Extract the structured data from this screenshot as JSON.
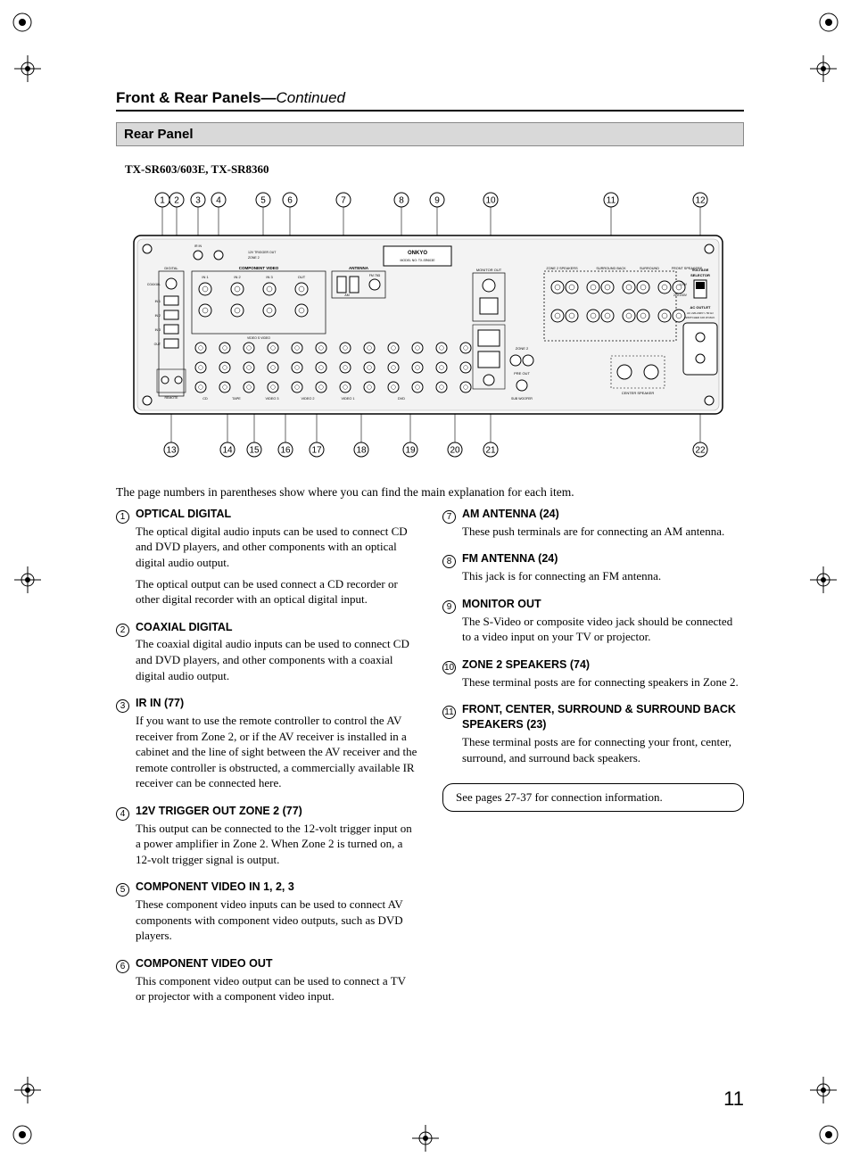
{
  "page": {
    "title_main": "Front & Rear Panels",
    "title_sep": "—",
    "title_cont": "Continued",
    "subheader": "Rear Panel",
    "model": "TX-SR603/603E, TX-SR8360",
    "intro": "The page numbers in parentheses show where you can find the main explanation for each item.",
    "note": "See pages 27-37 for connection information.",
    "page_number": "11"
  },
  "callouts_top": [
    "1",
    "2",
    "3",
    "4",
    "5",
    "6",
    "7",
    "8",
    "9",
    "10",
    "11",
    "12"
  ],
  "callouts_bottom": [
    "13",
    "14",
    "15",
    "16",
    "17",
    "18",
    "19",
    "20",
    "21",
    "22"
  ],
  "diagram_labels": {
    "brand": "ONKYO",
    "model_no": "MODEL NO: TX-SR603E",
    "trigger": "12V TRIGGER OUT ZONE 2",
    "ir_in": "IR IN",
    "digital": "DIGITAL",
    "coaxial": "COAXIAL",
    "optical": "OPTICAL",
    "component_video": "COMPONENT VIDEO",
    "antenna": "ANTENNA",
    "am": "AM",
    "fm": "FM 75Ω",
    "monitor_out": "MONITOR OUT",
    "video": "VIDEO",
    "s_video": "S VIDEO",
    "zone2_speakers": "ZONE 2 SPEAKERS",
    "surround_back": "SURROUND BACK SPEAKERS",
    "surround": "SURROUND SPEAKERS",
    "front_speakers": "FRONT SPEAKERS",
    "center_speaker": "CENTER SPEAKER",
    "pre_out": "PRE OUT",
    "sub_woofer": "SUB WOOFER",
    "zone2": "ZONE 2",
    "voltage_selector": "VOLTAGE SELECTOR",
    "v120": "120V",
    "v220": "220-230V",
    "ac_outlet": "AC OUTLET",
    "ac_spec": "AC 220-240V～ 50 Hz SWITCHED 100 W MAX.",
    "cd": "CD",
    "tape": "TAPE",
    "video1": "VIDEO 1",
    "video2": "VIDEO 2",
    "video3": "VIDEO 3",
    "dvd": "DVD",
    "in1": "IN 1",
    "in2": "IN 2",
    "in3": "IN 3",
    "out": "OUT",
    "in": "IN",
    "front": "FRONT",
    "surr": "SURROUND",
    "center": "CENTER",
    "ri": "REMOTE CONTROL"
  },
  "items_left": [
    {
      "n": "1",
      "head": "OPTICAL DIGITAL",
      "paras": [
        "The optical digital audio inputs can be used to connect CD and DVD players, and other components with an optical digital audio output.",
        "The optical output can be used connect a CD recorder or other digital recorder with an optical digital input."
      ]
    },
    {
      "n": "2",
      "head": "COAXIAL DIGITAL",
      "paras": [
        "The coaxial digital audio inputs can be used to connect CD and DVD players, and other components with a coaxial digital audio output."
      ]
    },
    {
      "n": "3",
      "head": "IR IN (77)",
      "paras": [
        "If you want to use the remote controller to control the AV receiver from Zone 2, or if the AV receiver is installed in a cabinet and the line of sight between the AV receiver and the remote controller is obstructed, a commercially available IR receiver can be connected here."
      ]
    },
    {
      "n": "4",
      "head": "12V TRIGGER OUT ZONE 2 (77)",
      "paras": [
        "This output can be connected to the 12-volt trigger input on a power amplifier in Zone 2. When Zone 2 is turned on, a 12-volt trigger signal is output."
      ]
    },
    {
      "n": "5",
      "head": "COMPONENT VIDEO IN 1, 2, 3",
      "paras": [
        "These component video inputs can be used to connect AV components with component video outputs, such as DVD players."
      ]
    },
    {
      "n": "6",
      "head": "COMPONENT VIDEO OUT",
      "paras": [
        "This component video output can be used to connect a TV or projector with a component video input."
      ]
    }
  ],
  "items_right": [
    {
      "n": "7",
      "head": "AM ANTENNA (24)",
      "paras": [
        "These push terminals are for connecting an AM antenna."
      ]
    },
    {
      "n": "8",
      "head": "FM ANTENNA (24)",
      "paras": [
        "This jack is for connecting an FM antenna."
      ]
    },
    {
      "n": "9",
      "head": "MONITOR OUT",
      "paras": [
        "The S-Video or composite video jack should be connected to a video input on your TV or projector."
      ]
    },
    {
      "n": "10",
      "head": "ZONE 2 SPEAKERS (74)",
      "paras": [
        "These terminal posts are for connecting speakers in Zone 2."
      ]
    },
    {
      "n": "11",
      "head": "FRONT, CENTER, SURROUND & SURROUND BACK SPEAKERS (23)",
      "paras": [
        "These terminal posts are for connecting your front, center, surround, and surround back speakers."
      ]
    }
  ],
  "colors": {
    "rule": "#000000",
    "grey_fill": "#d9d9d9",
    "light_border": "#888888",
    "panel_light": "#f3f3f3"
  },
  "typography": {
    "body_family": "Times New Roman",
    "heading_family": "Arial",
    "body_size_pt": 10,
    "heading_size_pt": 13,
    "pagenum_size_pt": 17
  }
}
